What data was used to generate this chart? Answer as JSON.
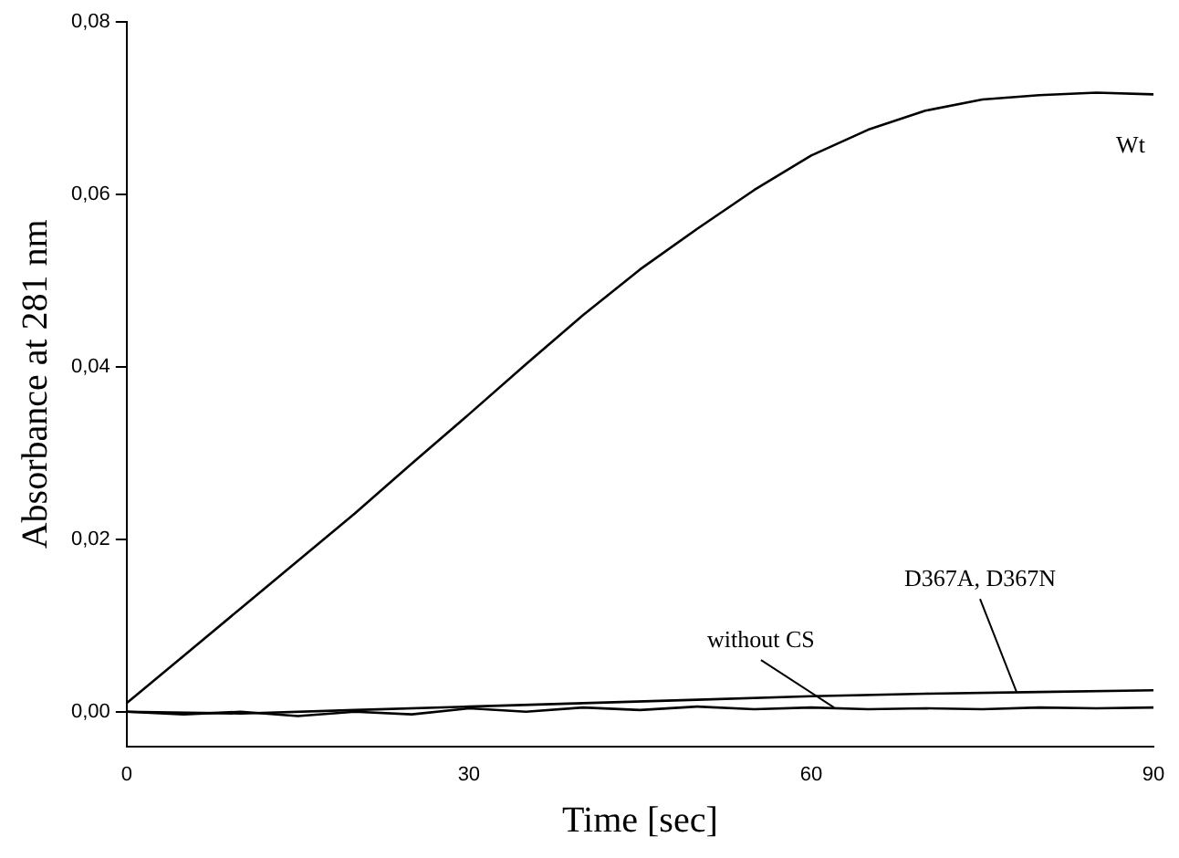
{
  "chart_data": {
    "type": "line",
    "xlabel": "Time [sec]",
    "ylabel": "Absorbance at 281 nm",
    "xlim": [
      0,
      90
    ],
    "xticks": [
      0,
      30,
      60,
      90
    ],
    "ylim": [
      -0.004,
      0.08
    ],
    "yticks": [
      {
        "value": 0,
        "label": "0,00"
      },
      {
        "value": 0.02,
        "label": "0,02"
      },
      {
        "value": 0.04,
        "label": "0,04"
      },
      {
        "value": 0.06,
        "label": "0,06"
      },
      {
        "value": 0.08,
        "label": "0,08"
      }
    ],
    "grid": false,
    "legend": false,
    "marker": "none",
    "line_style": "solid",
    "series": [
      {
        "color": "#000000",
        "x": [
          0,
          5,
          10,
          15,
          20,
          25,
          30,
          35,
          40,
          45,
          50,
          55,
          60,
          65,
          70,
          75,
          80,
          85,
          90
        ],
        "values": [
          0.001,
          0.0065,
          0.012,
          0.0175,
          0.023,
          0.0288,
          0.0345,
          0.0403,
          0.046,
          0.0513,
          0.056,
          0.0605,
          0.0645,
          0.0675,
          0.0697,
          0.071,
          0.0715,
          0.0718,
          0.0716
        ]
      },
      {
        "color": "#000000",
        "x": [
          0,
          10,
          20,
          30,
          40,
          50,
          60,
          70,
          80,
          90
        ],
        "values": [
          0,
          -0.0002,
          0.0002,
          0.0006,
          0.001,
          0.0014,
          0.0018,
          0.0021,
          0.0023,
          0.0025
        ]
      },
      {
        "color": "#000000",
        "x": [
          0,
          5,
          10,
          15,
          20,
          25,
          30,
          35,
          40,
          45,
          50,
          55,
          60,
          65,
          70,
          75,
          80,
          85,
          90
        ],
        "values": [
          0,
          -0.0003,
          0,
          -0.0005,
          0,
          -0.0003,
          0.0004,
          0,
          0.0005,
          0.0002,
          0.0006,
          0.0003,
          0.0005,
          0.0003,
          0.0004,
          0.0003,
          0.0005,
          0.0004,
          0.0005
        ]
      }
    ],
    "annotations": [
      {
        "text": "Wt",
        "x": 88,
        "y": 0.0716
      },
      {
        "text": "D367A, D367N",
        "x": 78,
        "y": 0.0023
      },
      {
        "text": "without CS",
        "x": 62,
        "y": 0.0005
      }
    ]
  }
}
